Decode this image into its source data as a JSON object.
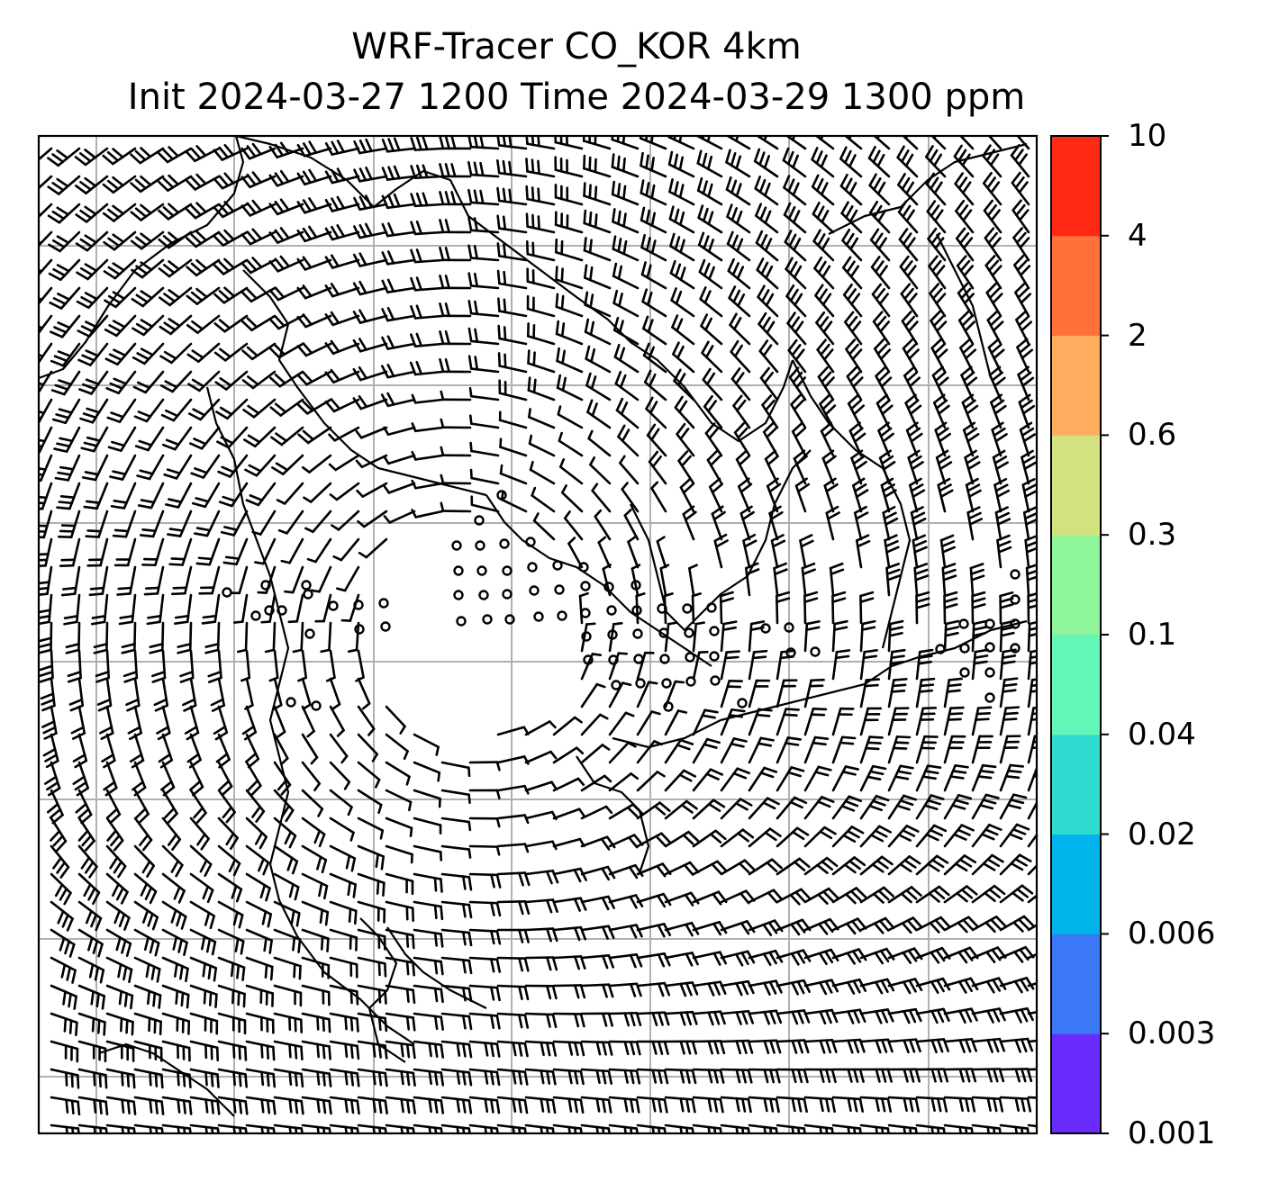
{
  "title": {
    "line1": "WRF-Tracer CO_KOR 4km",
    "line2": "Init 2024-03-27 1200 Time 2024-03-29 1300 ppm"
  },
  "colorbar": {
    "tick_labels": [
      "0.001",
      "0.003",
      "0.006",
      "0.02",
      "0.04",
      "0.1",
      "0.3",
      "0.6",
      "2",
      "4",
      "10"
    ],
    "colors": [
      "#6a2bff",
      "#3a78f5",
      "#00b3ea",
      "#2fdcd0",
      "#62f6b8",
      "#8ff59a",
      "#d1e27e",
      "#ffae60",
      "#ff7139",
      "#ff2a14"
    ]
  },
  "map": {
    "grid": "on",
    "grid_color": "#b0b0b0",
    "barb_color": "#000000",
    "calm_marker": "open-circle"
  }
}
